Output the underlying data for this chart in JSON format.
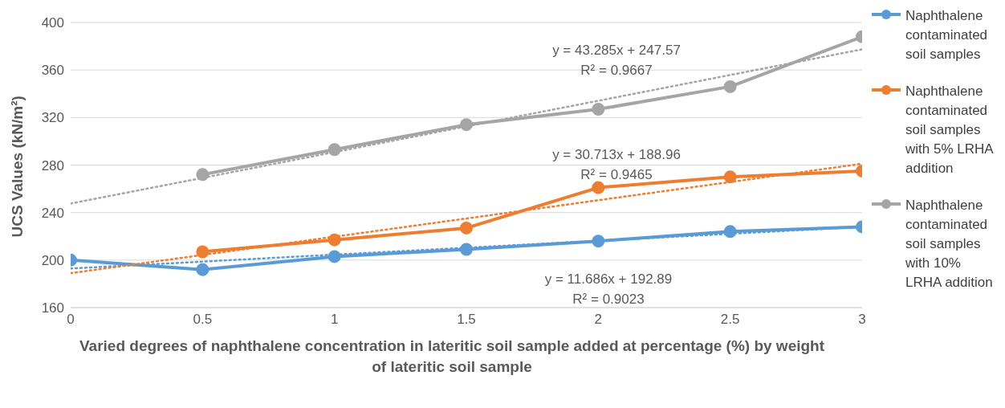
{
  "chart_data": {
    "type": "line",
    "xlabel": "Varied degrees of naphthalene concentration in lateritic soil sample added at percentage (%) by weight of lateritic soil sample",
    "ylabel": "UCS Values (kN/m²)",
    "x": [
      0,
      0.5,
      1,
      1.5,
      2,
      2.5,
      3
    ],
    "series": [
      {
        "name": "Naphthalene contaminated soil samples",
        "color": "#5b9bd5",
        "values": [
          200,
          192,
          203,
          209,
          216,
          224,
          228
        ]
      },
      {
        "name": "Naphthalene contaminated soil samples with 5% LRHA addition",
        "color": "#ed7d31",
        "values": [
          null,
          207,
          217,
          227,
          261,
          270,
          275
        ]
      },
      {
        "name": "Naphthalene contaminated soil samples with 10% LRHA addition",
        "color": "#a5a5a5",
        "values": [
          null,
          272,
          293,
          314,
          327,
          346,
          388
        ]
      },
      {
        "type": "line",
        "color": "#5b9bd5",
        "values": [
          192.9,
          198.7,
          204.6,
          210.4,
          216.3,
          222.1,
          228.0
        ],
        "line_style": "dotted",
        "marker": "none"
      },
      {
        "type": "line",
        "color": "#ed7d31",
        "values": [
          189.0,
          204.3,
          219.7,
          235.0,
          250.4,
          265.7,
          281.1
        ],
        "line_style": "dotted",
        "marker": "none"
      },
      {
        "type": "line",
        "color": "#a5a5a5",
        "values": [
          247.6,
          269.2,
          290.9,
          312.5,
          334.1,
          355.8,
          377.4
        ],
        "line_style": "dotted",
        "marker": "none"
      }
    ],
    "annotations": [
      "y = 43.285x + 247.57",
      "R² = 0.9667",
      "y = 30.713x + 188.96",
      "R² = 0.9465",
      "y = 11.686x + 192.89",
      "R² = 0.9023"
    ],
    "xlim": [
      0,
      3
    ],
    "xticks": [
      0,
      0.5,
      1,
      1.5,
      2,
      2.5,
      3
    ],
    "ylim": [
      160,
      400
    ],
    "yticks": [
      160,
      200,
      240,
      280,
      320,
      360,
      400
    ],
    "grid": "y",
    "legend": "right",
    "marker": "circle",
    "line_style": "solid"
  }
}
